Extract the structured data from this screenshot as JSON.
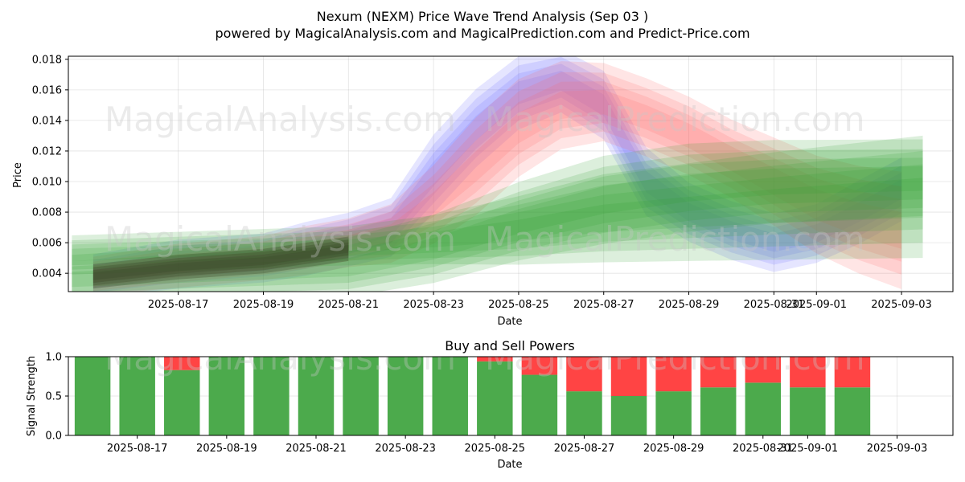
{
  "header": {
    "title": "Nexum (NEXM) Price Wave Trend Analysis (Sep 03 )",
    "subtitle": "powered by MagicalAnalysis.com and MagicalPrediction.com and Predict-Price.com"
  },
  "watermarks": [
    "MagicalAnalysis.com",
    "MagicalPrediction.com"
  ],
  "colors": {
    "blue": "#6666ff",
    "red": "#ff6666",
    "green": "#2e9e2e",
    "dark": "#3d4a2a",
    "buy": "#4caa4c",
    "sell": "#ff4444"
  },
  "chart_data": [
    {
      "type": "area",
      "title": "",
      "xlabel": "Date",
      "ylabel": "Price",
      "x_ticks": [
        "2025-08-17",
        "2025-08-19",
        "2025-08-21",
        "2025-08-23",
        "2025-08-25",
        "2025-08-27",
        "2025-08-29",
        "2025-08-31",
        "2025-09-01",
        "2025-09-03"
      ],
      "x_range": [
        "2025-08-14 10:00",
        "2025-09-04 05:00"
      ],
      "ylim": [
        0.0028,
        0.0182
      ],
      "y_ticks": [
        0.004,
        0.006,
        0.008,
        0.01,
        0.012,
        0.014,
        0.016,
        0.018
      ],
      "grid": true,
      "series": [
        {
          "color": "blue",
          "x": [
            "2025-08-15",
            "2025-08-17",
            "2025-08-19",
            "2025-08-20",
            "2025-08-21",
            "2025-08-22",
            "2025-08-23",
            "2025-08-24",
            "2025-08-25",
            "2025-08-26",
            "2025-08-27",
            "2025-08-28",
            "2025-08-29",
            "2025-08-30",
            "2025-08-31",
            "2025-09-01",
            "2025-09-02",
            "2025-09-03"
          ],
          "center": [
            0.0038,
            0.0046,
            0.005,
            0.0056,
            0.0062,
            0.007,
            0.0105,
            0.0135,
            0.0158,
            0.0166,
            0.015,
            0.01,
            0.008,
            0.0068,
            0.006,
            0.0066,
            0.008,
            0.0095
          ],
          "band": [
            0.0009,
            0.001,
            0.001,
            0.0011,
            0.0011,
            0.0012,
            0.0016,
            0.0016,
            0.0015,
            0.0013,
            0.0014,
            0.0014,
            0.0012,
            0.0012,
            0.0012,
            0.0012,
            0.0013,
            0.0013
          ]
        },
        {
          "color": "red",
          "x": [
            "2025-08-15",
            "2025-08-17",
            "2025-08-19",
            "2025-08-20",
            "2025-08-21",
            "2025-08-22",
            "2025-08-23",
            "2025-08-24",
            "2025-08-25",
            "2025-08-26",
            "2025-08-27",
            "2025-08-28",
            "2025-08-29",
            "2025-08-30",
            "2025-08-31",
            "2025-09-01",
            "2025-09-02",
            "2025-09-03"
          ],
          "center": [
            0.0038,
            0.0045,
            0.005,
            0.0055,
            0.006,
            0.0066,
            0.0085,
            0.011,
            0.0135,
            0.015,
            0.0152,
            0.0142,
            0.013,
            0.0115,
            0.01,
            0.0085,
            0.0075,
            0.0068
          ],
          "band": [
            0.0008,
            0.0009,
            0.0009,
            0.001,
            0.001,
            0.0012,
            0.0016,
            0.002,
            0.002,
            0.0018,
            0.0016,
            0.0016,
            0.0016,
            0.0016,
            0.0018,
            0.002,
            0.0022,
            0.0024
          ]
        },
        {
          "color": "green",
          "x": [
            "2025-08-14 12:00",
            "2025-08-21",
            "2025-08-23",
            "2025-08-25",
            "2025-08-27",
            "2025-08-29",
            "2025-08-31",
            "2025-09-03 12:00"
          ],
          "center": [
            0.0052,
            0.0058,
            0.0062,
            0.0068,
            0.0076,
            0.008,
            0.0084,
            0.009
          ],
          "band": [
            0.0008,
            0.0008,
            0.001,
            0.0014,
            0.0018,
            0.002,
            0.0022,
            0.0025
          ]
        },
        {
          "color": "green",
          "x": [
            "2025-08-14 12:00",
            "2025-08-21",
            "2025-08-23",
            "2025-08-25",
            "2025-08-27",
            "2025-08-29",
            "2025-08-31",
            "2025-09-03 12:00"
          ],
          "center": [
            0.0036,
            0.0044,
            0.0056,
            0.0074,
            0.0088,
            0.0096,
            0.01,
            0.0102
          ],
          "band": [
            0.001,
            0.0012,
            0.0014,
            0.0016,
            0.0018,
            0.0018,
            0.0017,
            0.0016
          ]
        },
        {
          "color": "dark",
          "x": [
            "2025-08-15",
            "2025-08-16",
            "2025-08-17",
            "2025-08-18",
            "2025-08-19",
            "2025-08-20",
            "2025-08-21"
          ],
          "center": [
            0.0038,
            0.0041,
            0.0044,
            0.0046,
            0.0048,
            0.0052,
            0.0056
          ],
          "band": [
            0.0005,
            0.0005,
            0.0005,
            0.0005,
            0.0005,
            0.0005,
            0.0005
          ]
        }
      ]
    },
    {
      "type": "bar",
      "title": "Buy and Sell Powers",
      "xlabel": "Date",
      "ylabel": "Signal Strength",
      "x_ticks": [
        "2025-08-17",
        "2025-08-19",
        "2025-08-21",
        "2025-08-23",
        "2025-08-25",
        "2025-08-27",
        "2025-08-29",
        "2025-08-31",
        "2025-09-01",
        "2025-09-03"
      ],
      "x_range": [
        "2025-08-15 11:00",
        "2025-09-04 06:00"
      ],
      "ylim": [
        0.0,
        1.0
      ],
      "y_ticks": [
        0.0,
        0.5,
        1.0
      ],
      "grid": true,
      "categories": [
        "2025-08-16",
        "2025-08-17",
        "2025-08-18",
        "2025-08-19",
        "2025-08-20",
        "2025-08-21",
        "2025-08-22",
        "2025-08-23",
        "2025-08-24",
        "2025-08-25",
        "2025-08-26",
        "2025-08-27",
        "2025-08-28",
        "2025-08-29",
        "2025-08-30",
        "2025-08-31",
        "2025-09-01",
        "2025-09-02"
      ],
      "series": [
        {
          "color": "buy",
          "values": [
            1.0,
            1.0,
            0.83,
            1.0,
            1.0,
            1.0,
            1.0,
            1.0,
            1.0,
            0.94,
            0.77,
            0.56,
            0.5,
            0.56,
            0.61,
            0.67,
            0.61,
            0.61
          ]
        },
        {
          "color": "sell",
          "values": [
            0.0,
            0.0,
            0.17,
            0.0,
            0.0,
            0.0,
            0.0,
            0.0,
            0.0,
            0.06,
            0.23,
            0.44,
            0.5,
            0.44,
            0.39,
            0.33,
            0.39,
            0.39
          ]
        }
      ]
    }
  ]
}
